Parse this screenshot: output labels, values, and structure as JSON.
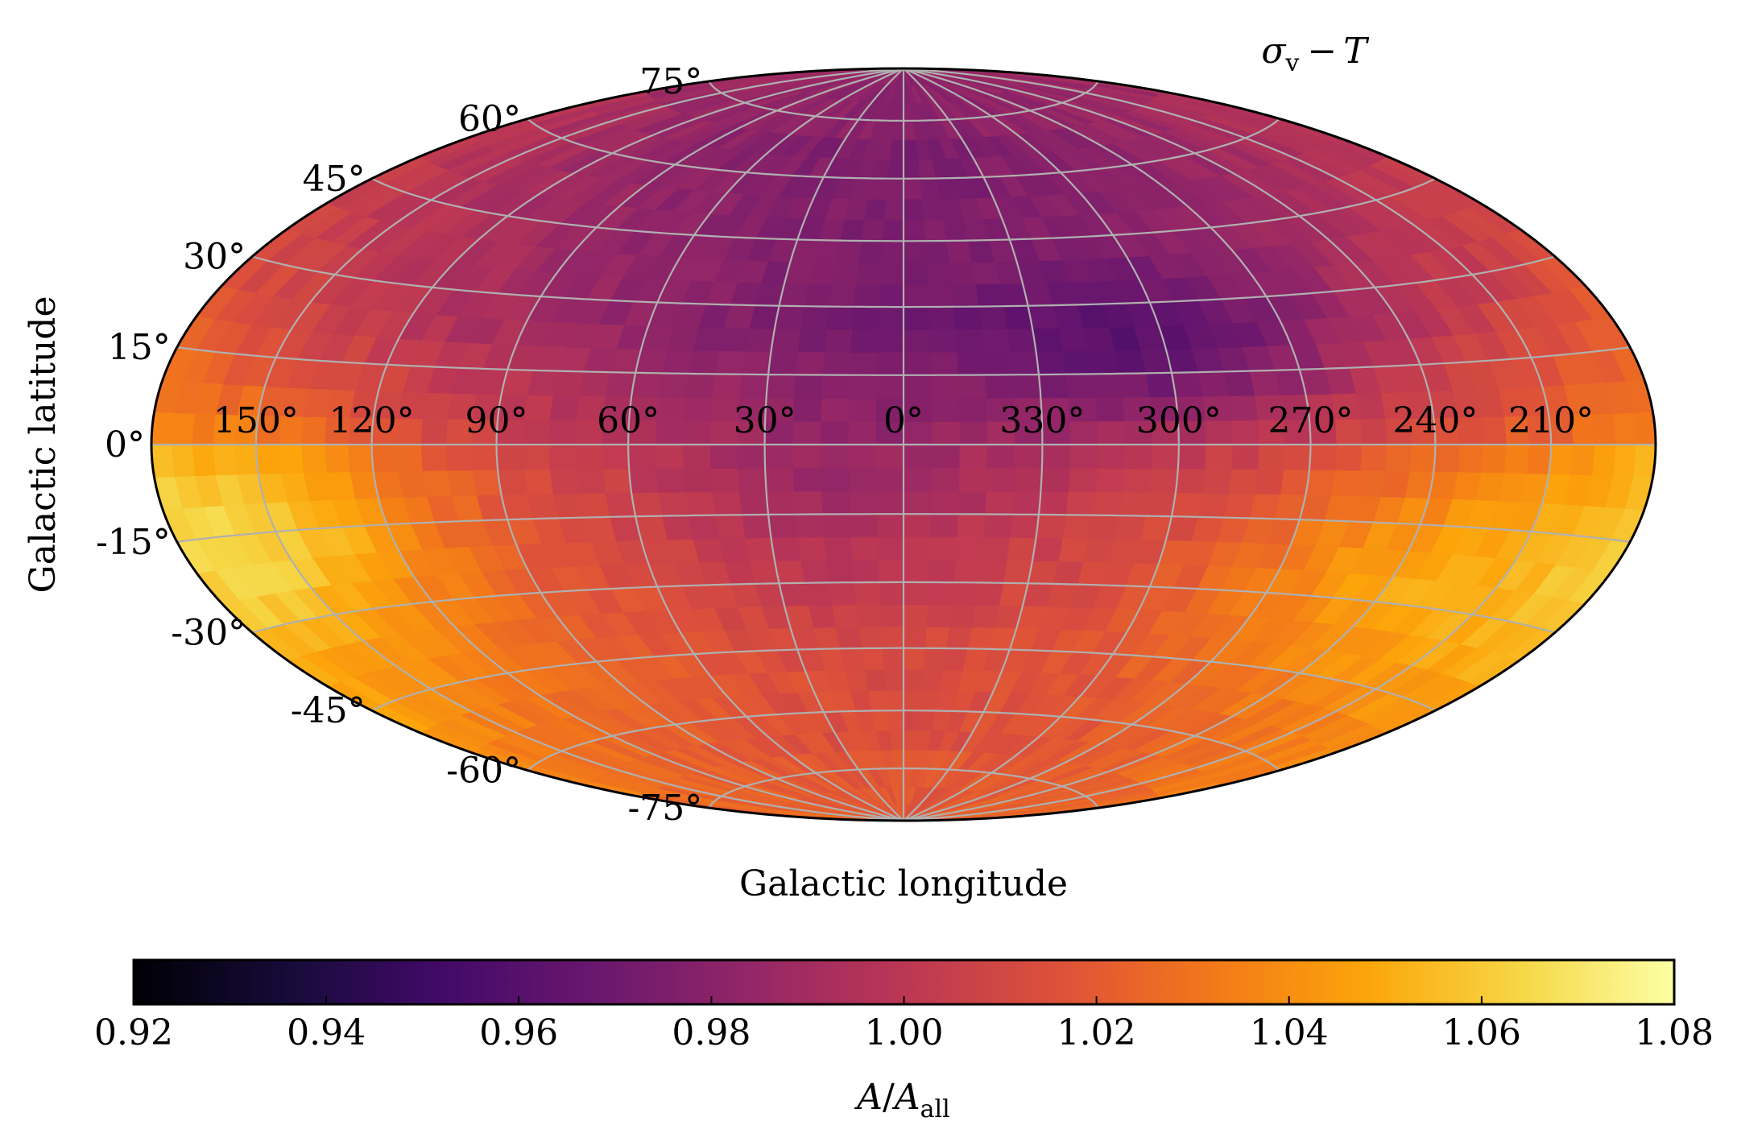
{
  "chart_data": {
    "type": "heatmap",
    "projection": "hammer-aitoff",
    "title": "σ_v − T",
    "title_parts": {
      "sigma": "σ",
      "sub": "v",
      "minus": "−",
      "T": "T"
    },
    "xlabel": "Galactic longitude",
    "ylabel": "Galactic latitude",
    "longitude_ticks": [
      "150°",
      "120°",
      "90°",
      "60°",
      "30°",
      "0°",
      "330°",
      "300°",
      "270°",
      "240°",
      "210°"
    ],
    "longitude_tick_values": [
      150,
      120,
      90,
      60,
      30,
      0,
      -30,
      -60,
      -90,
      -120,
      -150
    ],
    "latitude_ticks": [
      "75°",
      "60°",
      "45°",
      "30°",
      "15°",
      "0°",
      "-15°",
      "-30°",
      "-45°",
      "-60°",
      "-75°"
    ],
    "latitude_tick_values": [
      75,
      60,
      45,
      30,
      15,
      0,
      -15,
      -30,
      -45,
      -60,
      -75
    ],
    "grid": true,
    "colormap": "inferno",
    "colorbar": {
      "label_parts": {
        "A": "A",
        "slash": "/",
        "A2": "A",
        "sub": "all"
      },
      "label": "A/A_all",
      "range": [
        0.92,
        1.08
      ],
      "ticks": [
        "0.92",
        "0.94",
        "0.96",
        "0.98",
        "1.00",
        "1.02",
        "1.04",
        "1.06",
        "1.08"
      ],
      "tick_values": [
        0.92,
        0.94,
        0.96,
        0.98,
        1.0,
        1.02,
        1.04,
        1.06,
        1.08
      ]
    },
    "field_description_values": {
      "north_polar_cap": 0.985,
      "north_mid_latitudes_inner": 0.975,
      "north_min_region_lon300_lat20": 0.962,
      "equator_inner_galaxy": 0.993,
      "outer_galaxy_low_latitude": 1.03,
      "south_max_region_lon150_lat-15": 1.055,
      "south_max_region_lon240_lat-25": 1.05,
      "south_polar_cap": 1.022
    }
  }
}
